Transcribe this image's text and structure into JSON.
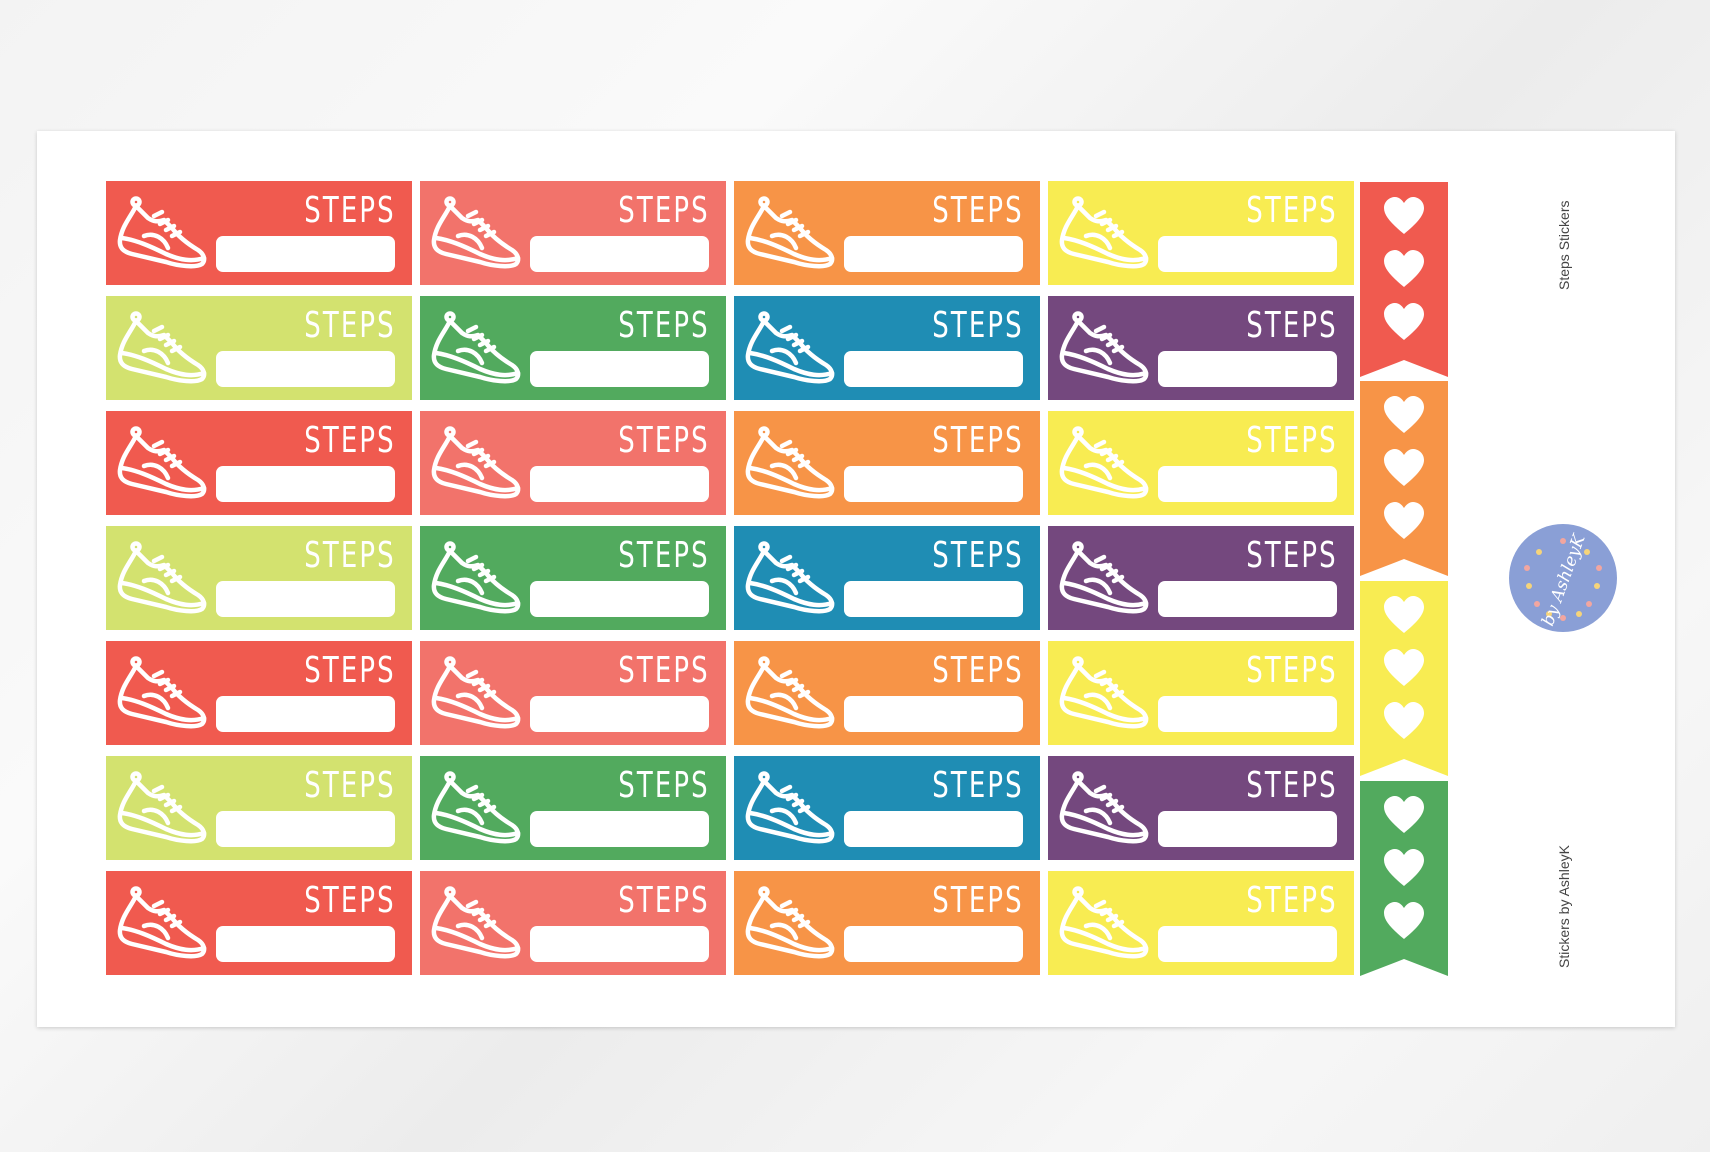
{
  "sheet": {
    "title": "Steps Stickers",
    "credit": "Stickers by AshleyK",
    "logo_text": "by AshleyK"
  },
  "sticker": {
    "label": "STEPS",
    "icon": "sneaker-icon"
  },
  "palette": {
    "red": "#f05a4f",
    "salmon": "#f2736b",
    "orange": "#f79447",
    "yellow": "#f8ec52",
    "lime": "#d3e26f",
    "green": "#52aa5e",
    "blue": "#1f8db4",
    "purple": "#74487e",
    "logo": "#8a9fd6"
  },
  "grid": [
    [
      "red",
      "salmon",
      "orange",
      "yellow"
    ],
    [
      "lime",
      "green",
      "blue",
      "purple"
    ],
    [
      "red",
      "salmon",
      "orange",
      "yellow"
    ],
    [
      "lime",
      "green",
      "blue",
      "purple"
    ],
    [
      "red",
      "salmon",
      "orange",
      "yellow"
    ],
    [
      "lime",
      "green",
      "blue",
      "purple"
    ],
    [
      "red",
      "salmon",
      "orange",
      "yellow"
    ]
  ],
  "banners": [
    {
      "color": "red",
      "icon": "heart-icon",
      "hearts": 3
    },
    {
      "color": "orange",
      "icon": "heart-icon",
      "hearts": 3
    },
    {
      "color": "yellow",
      "icon": "heart-icon",
      "hearts": 3
    },
    {
      "color": "green",
      "icon": "heart-icon",
      "hearts": 3
    }
  ]
}
